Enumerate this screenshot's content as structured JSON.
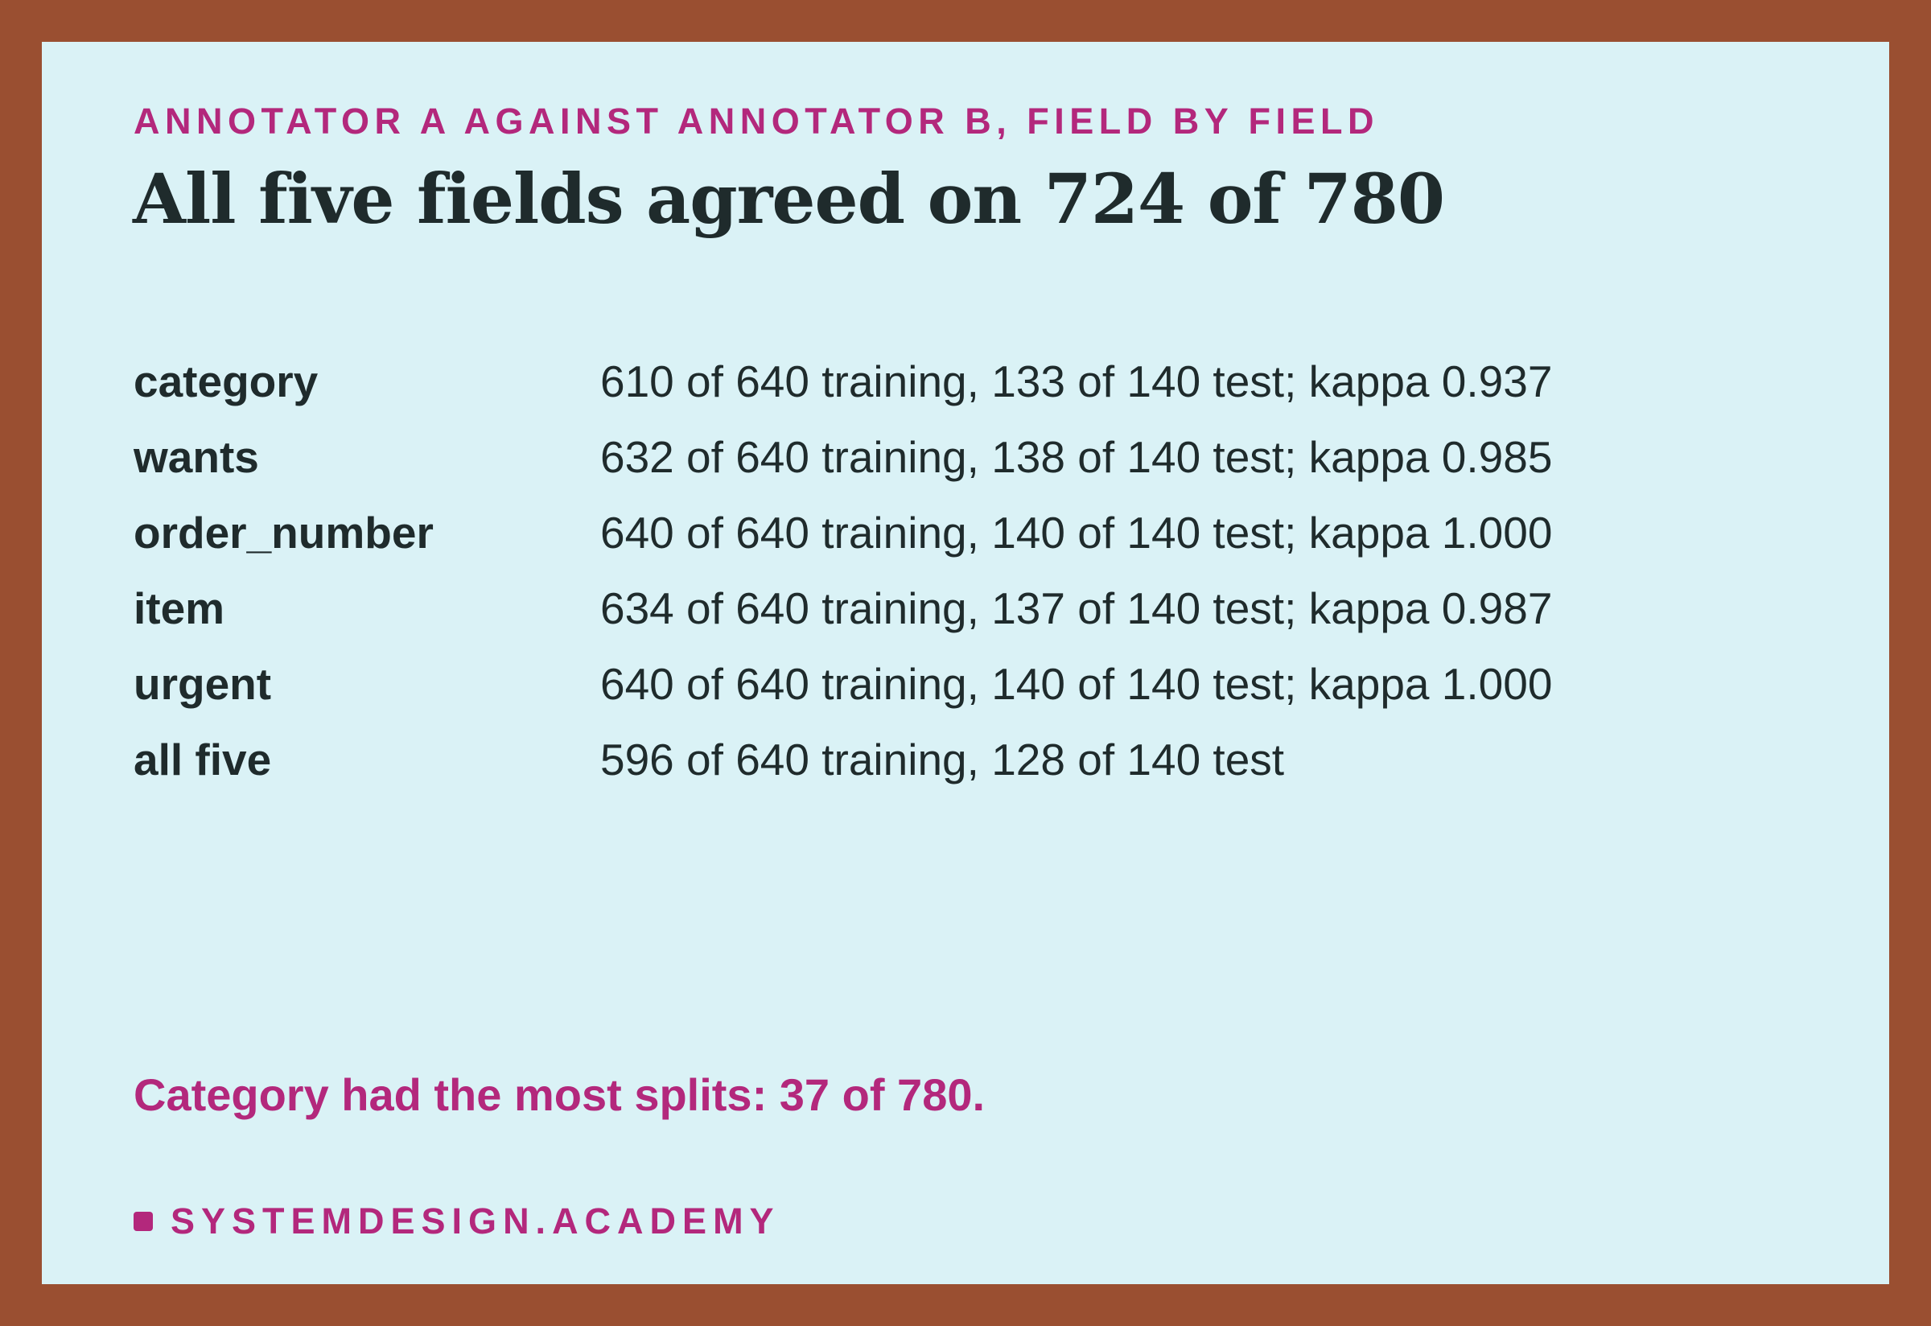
{
  "eyebrow": "ANNOTATOR A AGAINST ANNOTATOR B, FIELD BY FIELD",
  "title": "All five fields agreed on 724 of 780",
  "rows": [
    {
      "field": "category",
      "stats": "610 of 640 training, 133 of 140 test; kappa 0.937"
    },
    {
      "field": "wants",
      "stats": "632 of 640 training, 138 of 140 test; kappa 0.985"
    },
    {
      "field": "order_number",
      "stats": "640 of 640 training, 140 of 140 test; kappa 1.000"
    },
    {
      "field": "item",
      "stats": "634 of 640 training, 137 of 140 test; kappa 0.987"
    },
    {
      "field": "urgent",
      "stats": "640 of 640 training, 140 of 140 test; kappa 1.000"
    },
    {
      "field": "all five",
      "stats": "596 of 640 training, 128 of 140 test"
    }
  ],
  "callout": "Category had the most splits: 37 of 780.",
  "brand": {
    "name": "SYSTEMDESIGN.ACADEMY"
  },
  "colors": {
    "frame": "#9a4f31",
    "background": "#daf2f6",
    "accent": "#b3287c",
    "text": "#1f2b2c"
  }
}
